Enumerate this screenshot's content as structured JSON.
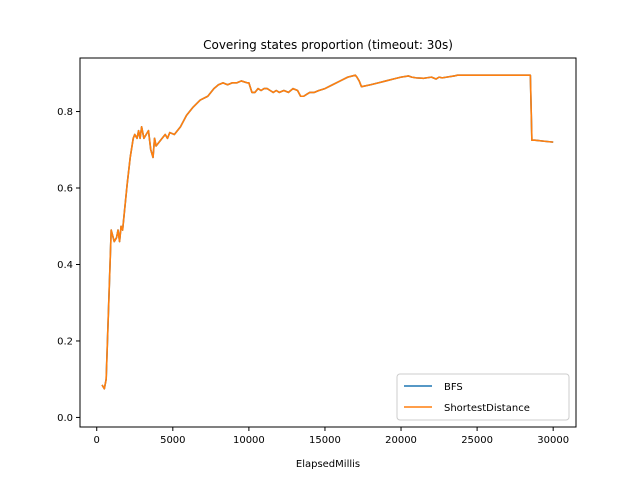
{
  "chart_data": {
    "type": "line",
    "title": "Covering states proportion (timeout: 30s)",
    "xlabel": "ElapsedMillis",
    "ylabel": "",
    "xlim": [
      -1100,
      31500
    ],
    "ylim": [
      -0.025,
      0.94
    ],
    "xticks": [
      0,
      5000,
      10000,
      15000,
      20000,
      25000,
      30000
    ],
    "yticks": [
      0.0,
      0.2,
      0.4,
      0.6,
      0.8
    ],
    "xtick_labels": [
      "0",
      "5000",
      "10000",
      "15000",
      "20000",
      "25000",
      "30000"
    ],
    "ytick_labels": [
      "0.0",
      "0.2",
      "0.4",
      "0.6",
      "0.8"
    ],
    "grid": false,
    "legend_position": "lower-right",
    "series": [
      {
        "name": "BFS",
        "color": "#1f77b4",
        "x": [
          350,
          500,
          620,
          950,
          1150,
          1300,
          1400,
          1500,
          1600,
          1700,
          1800,
          2000,
          2200,
          2400,
          2500,
          2650,
          2750,
          2850,
          2950,
          3100,
          3250,
          3400,
          3550,
          3700,
          3800,
          3900,
          4100,
          4300,
          4500,
          4650,
          4800,
          5100,
          5500,
          5900,
          6300,
          6800,
          7300,
          7700,
          8000,
          8300,
          8600,
          8900,
          9200,
          9500,
          9900,
          10000,
          10200,
          10400,
          10600,
          10800,
          11000,
          11200,
          11400,
          11600,
          11800,
          12000,
          12300,
          12600,
          12900,
          13200,
          13400,
          13600,
          13800,
          14000,
          14300,
          14600,
          15000,
          15500,
          16000,
          16500,
          17000,
          17100,
          17250,
          17400,
          18000,
          18500,
          19000,
          19500,
          20000,
          20500,
          20700,
          21000,
          21500,
          22000,
          22300,
          22500,
          22700,
          23000,
          23500,
          23700,
          28500,
          28600,
          28800,
          29500,
          30000
        ],
        "y": [
          0.085,
          0.075,
          0.1,
          0.49,
          0.46,
          0.47,
          0.49,
          0.46,
          0.5,
          0.49,
          0.53,
          0.61,
          0.68,
          0.73,
          0.74,
          0.73,
          0.75,
          0.73,
          0.76,
          0.73,
          0.74,
          0.75,
          0.7,
          0.68,
          0.73,
          0.71,
          0.72,
          0.73,
          0.74,
          0.73,
          0.745,
          0.74,
          0.76,
          0.79,
          0.81,
          0.83,
          0.84,
          0.86,
          0.87,
          0.875,
          0.87,
          0.875,
          0.875,
          0.88,
          0.875,
          0.875,
          0.85,
          0.85,
          0.86,
          0.855,
          0.86,
          0.86,
          0.855,
          0.85,
          0.855,
          0.85,
          0.855,
          0.85,
          0.86,
          0.855,
          0.84,
          0.84,
          0.845,
          0.85,
          0.85,
          0.855,
          0.86,
          0.87,
          0.88,
          0.89,
          0.895,
          0.89,
          0.88,
          0.865,
          0.87,
          0.875,
          0.88,
          0.885,
          0.89,
          0.893,
          0.89,
          0.888,
          0.887,
          0.89,
          0.885,
          0.89,
          0.888,
          0.89,
          0.893,
          0.895,
          0.895,
          0.725,
          0.725,
          0.722,
          0.72
        ]
      },
      {
        "name": "ShortestDistance",
        "color": "#ff7f0e",
        "x": [
          350,
          500,
          620,
          950,
          1150,
          1300,
          1400,
          1500,
          1600,
          1700,
          1800,
          2000,
          2200,
          2400,
          2500,
          2650,
          2750,
          2850,
          2950,
          3100,
          3250,
          3400,
          3550,
          3700,
          3800,
          3900,
          4100,
          4300,
          4500,
          4650,
          4800,
          5100,
          5500,
          5900,
          6300,
          6800,
          7300,
          7700,
          8000,
          8300,
          8600,
          8900,
          9200,
          9500,
          9900,
          10000,
          10200,
          10400,
          10600,
          10800,
          11000,
          11200,
          11400,
          11600,
          11800,
          12000,
          12300,
          12600,
          12900,
          13200,
          13400,
          13600,
          13800,
          14000,
          14300,
          14600,
          15000,
          15500,
          16000,
          16500,
          17000,
          17100,
          17250,
          17400,
          18000,
          18500,
          19000,
          19500,
          20000,
          20500,
          20700,
          21000,
          21500,
          22000,
          22300,
          22500,
          22700,
          23000,
          23500,
          23700,
          28500,
          28600,
          28800,
          29500,
          30000
        ],
        "y": [
          0.085,
          0.075,
          0.1,
          0.49,
          0.46,
          0.47,
          0.49,
          0.46,
          0.5,
          0.49,
          0.53,
          0.61,
          0.68,
          0.73,
          0.74,
          0.73,
          0.75,
          0.73,
          0.76,
          0.73,
          0.74,
          0.75,
          0.7,
          0.68,
          0.73,
          0.71,
          0.72,
          0.73,
          0.74,
          0.73,
          0.745,
          0.74,
          0.76,
          0.79,
          0.81,
          0.83,
          0.84,
          0.86,
          0.87,
          0.875,
          0.87,
          0.875,
          0.875,
          0.88,
          0.875,
          0.875,
          0.85,
          0.85,
          0.86,
          0.855,
          0.86,
          0.86,
          0.855,
          0.85,
          0.855,
          0.85,
          0.855,
          0.85,
          0.86,
          0.855,
          0.84,
          0.84,
          0.845,
          0.85,
          0.85,
          0.855,
          0.86,
          0.87,
          0.88,
          0.89,
          0.895,
          0.89,
          0.88,
          0.865,
          0.87,
          0.875,
          0.88,
          0.885,
          0.89,
          0.893,
          0.89,
          0.888,
          0.887,
          0.89,
          0.885,
          0.89,
          0.888,
          0.89,
          0.893,
          0.895,
          0.895,
          0.725,
          0.725,
          0.722,
          0.72
        ]
      }
    ]
  }
}
